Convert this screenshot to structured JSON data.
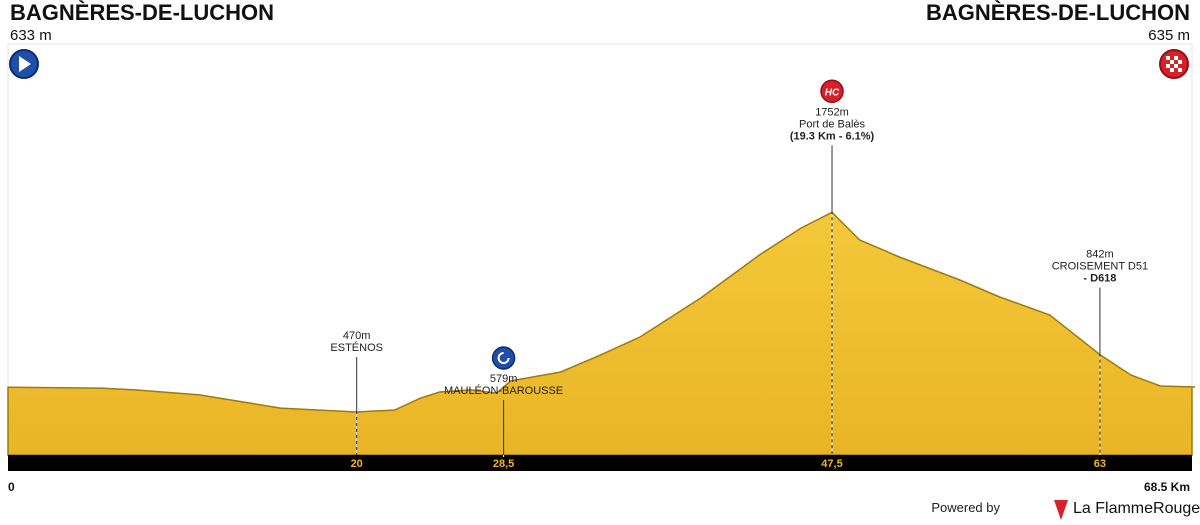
{
  "start": {
    "name": "BAGNÈRES-DE-LUCHON",
    "altitude": "633 m"
  },
  "finish": {
    "name": "BAGNÈRES-DE-LUCHON",
    "altitude": "635 m"
  },
  "chart_data": {
    "type": "area",
    "color": "#efc02e",
    "x": [
      0,
      5.2,
      7.2,
      10.9,
      15.6,
      20,
      22.2,
      23.7,
      24.8,
      26.6,
      28.1,
      28.9,
      31.8,
      34.1,
      36.4,
      39.9,
      43.3,
      45.7,
      47.5,
      49.1,
      51.4,
      54.9,
      57.2,
      60.1,
      63,
      64.8,
      66.5,
      68.5
    ],
    "values": [
      633,
      628,
      616,
      584,
      500,
      475,
      488,
      564,
      603,
      616,
      596,
      673,
      731,
      839,
      955,
      1204,
      1479,
      1651,
      1752,
      1575,
      1466,
      1319,
      1210,
      1095,
      842,
      711,
      641,
      635
    ],
    "xlim": [
      0,
      68.5
    ],
    "ylim": [
      200,
      2470
    ],
    "xticks": [
      0,
      20,
      {
        "value": 28.5,
        "label": "28,5"
      },
      {
        "value": 47.5,
        "label": "47,5"
      },
      63,
      {
        "value": 68.5,
        "label": "68.5 Km"
      }
    ],
    "waypoints": [
      {
        "lines": [
          "470m",
          "ESTÉNOS"
        ]
      },
      {
        "lines": [
          "579m",
          "MAULÉON-BAROUSSE"
        ]
      },
      {
        "lines": [
          "1752m",
          "Port de Balès",
          "(19.3 Km - 6.1%)"
        ],
        "badge": "HC"
      },
      {
        "lines": [
          "842m",
          "CROISEMENT D51",
          "- D618"
        ]
      }
    ]
  },
  "footer": {
    "powered": "Powered by",
    "brand": "La FlammeRouge"
  }
}
